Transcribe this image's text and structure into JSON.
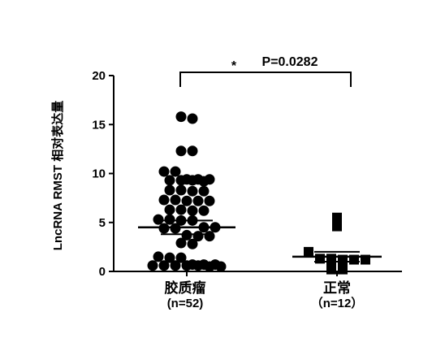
{
  "chart_data": {
    "type": "scatter",
    "ylabel": "LncRNA RMST 相对表达量",
    "ylim": [
      0,
      20
    ],
    "yticks": [
      0,
      5,
      10,
      15,
      20
    ],
    "grid": false,
    "categories": [
      "胶质瘤",
      "正常"
    ],
    "group_n": [
      "(n=52)",
      "（n=12）"
    ],
    "series": [
      {
        "marker": "circle",
        "values": [
          15.8,
          15.6,
          12.3,
          12.3,
          10.2,
          10.2,
          9.4,
          9.3,
          9.4,
          9.3,
          9.2,
          9.3,
          9.4,
          8.2,
          8.3,
          8.2,
          8.3,
          7.2,
          7.3,
          7.2,
          7.3,
          7.2,
          6.2,
          6.3,
          6.2,
          6.3,
          5.2,
          5.3,
          5.2,
          5.3,
          4.4,
          4.5,
          4.4,
          4.5,
          3.6,
          3.7,
          3.6,
          2.8,
          2.9,
          1.4,
          1.5,
          1.4,
          0.7,
          0.6,
          0.7,
          0.6,
          0.5,
          0.6,
          0.7,
          0.5,
          0.6,
          0.6
        ],
        "mean": 4.5,
        "sem_lower": 3.8,
        "sem_upper": 5.2
      },
      {
        "marker": "square",
        "values": [
          5.5,
          4.6,
          2.0,
          1.3,
          1.2,
          1.3,
          1.2,
          1.1,
          1.2,
          0.3,
          0.2,
          0.2
        ],
        "mean": 1.5,
        "sem_lower": 1.0,
        "sem_upper": 2.0
      }
    ],
    "annotation": {
      "star": "*",
      "text": "P=0.0282"
    }
  },
  "colors": {
    "marker": "#000000",
    "axis": "#000000",
    "background": "#ffffff"
  }
}
